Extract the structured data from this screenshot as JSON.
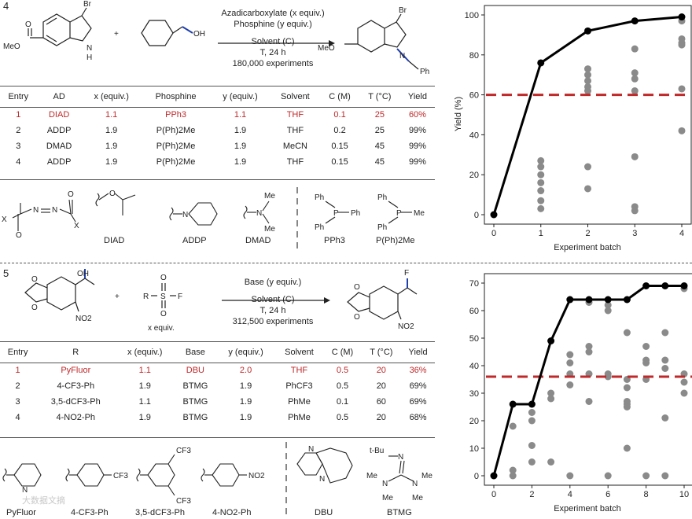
{
  "panel4": {
    "number": "4",
    "atoms": {
      "br": "Br",
      "meo": "MeO",
      "o": "O",
      "nh_n": "N",
      "nh_h": "H",
      "oh": "OH",
      "n": "N",
      "ph": "Ph",
      "plus": "+"
    },
    "conditions": {
      "line1": "Azadicarboxylate (x equiv.)",
      "line2": "Phosphine (y equiv.)",
      "line3": "Solvent (C)",
      "line4": "T, 24 h",
      "line5": "180,000 experiments"
    },
    "table": {
      "headers": [
        "Entry",
        "AD",
        "x (equiv.)",
        "Phosphine",
        "y (equiv.)",
        "Solvent",
        "C (M)",
        "T (°C)",
        "Yield"
      ],
      "rows": [
        [
          "1",
          "DIAD",
          "1.1",
          "PPh3",
          "1.1",
          "THF",
          "0.1",
          "25",
          "60%"
        ],
        [
          "2",
          "ADDP",
          "1.9",
          "P(Ph)2Me",
          "1.9",
          "THF",
          "0.2",
          "25",
          "99%"
        ],
        [
          "3",
          "DMAD",
          "1.9",
          "P(Ph)2Me",
          "1.9",
          "MeCN",
          "0.15",
          "45",
          "99%"
        ],
        [
          "4",
          "ADDP",
          "1.9",
          "P(Ph)2Me",
          "1.9",
          "THF",
          "0.15",
          "45",
          "99%"
        ]
      ]
    },
    "structures": {
      "diad": "DIAD",
      "addp": "ADDP",
      "dmad": "DMAD",
      "pph3": "PPh3",
      "pph2me": "P(Ph)2Me"
    },
    "struct_atoms": {
      "x": "X",
      "o": "O",
      "n": "N",
      "ph": "Ph",
      "p": "P",
      "me": "Me"
    }
  },
  "chart4": {
    "type": "line",
    "xlabel": "Experiment batch",
    "ylabel": "Yield (%)",
    "xlim": [
      0,
      4
    ],
    "ylim": [
      0,
      100
    ],
    "xticks": [
      0,
      1,
      2,
      3,
      4
    ],
    "yticks": [
      0,
      20,
      40,
      60,
      80,
      100
    ],
    "line_x": [
      0,
      1,
      2,
      3,
      4
    ],
    "line_y": [
      0,
      76,
      92,
      97,
      99
    ],
    "ref_y": 60,
    "scatter": [
      [
        1,
        27
      ],
      [
        1,
        24
      ],
      [
        1,
        20
      ],
      [
        1,
        16
      ],
      [
        1,
        12
      ],
      [
        1,
        7
      ],
      [
        1,
        3
      ],
      [
        2,
        73
      ],
      [
        2,
        70
      ],
      [
        2,
        67
      ],
      [
        2,
        64
      ],
      [
        2,
        62
      ],
      [
        2,
        24
      ],
      [
        2,
        13
      ],
      [
        3,
        83
      ],
      [
        3,
        71
      ],
      [
        3,
        68
      ],
      [
        3,
        62
      ],
      [
        3,
        29
      ],
      [
        3,
        4
      ],
      [
        3,
        2
      ],
      [
        4,
        97
      ],
      [
        4,
        88
      ],
      [
        4,
        86
      ],
      [
        4,
        85
      ],
      [
        4,
        63
      ],
      [
        4,
        42
      ]
    ]
  },
  "panel5": {
    "number": "5",
    "atoms": {
      "oh": "OH",
      "o1": "O",
      "o2": "O",
      "o3": "O",
      "o4": "O",
      "no2": "NO2",
      "r": "R",
      "s": "S",
      "f": "F",
      "so_o1": "O",
      "so_o2": "O",
      "xequiv": "x equiv.",
      "plus": "+",
      "f2": "F",
      "no2b": "NO2"
    },
    "conditions": {
      "line1": "Base (y equiv.)",
      "line2": "Solvent (C)",
      "line3": "T, 24 h",
      "line4": "312,500 experiments"
    },
    "table": {
      "headers": [
        "Entry",
        "R",
        "x (equiv.)",
        "Base",
        "y (equiv.)",
        "Solvent",
        "C (M)",
        "T (°C)",
        "Yield"
      ],
      "rows": [
        [
          "1",
          "PyFluor",
          "1.1",
          "DBU",
          "2.0",
          "THF",
          "0.5",
          "20",
          "36%"
        ],
        [
          "2",
          "4-CF3-Ph",
          "1.9",
          "BTMG",
          "1.9",
          "PhCF3",
          "0.5",
          "20",
          "69%"
        ],
        [
          "3",
          "3,5-dCF3-Ph",
          "1.1",
          "BTMG",
          "1.9",
          "PhMe",
          "0.1",
          "60",
          "69%"
        ],
        [
          "4",
          "4-NO2-Ph",
          "1.9",
          "BTMG",
          "1.9",
          "PhMe",
          "0.5",
          "20",
          "68%"
        ]
      ]
    },
    "structures": {
      "pyfluor": "PyFluor",
      "cf3ph": "4-CF3-Ph",
      "dcf3ph": "3,5-dCF3-Ph",
      "no2ph": "4-NO2-Ph",
      "dbu": "DBU",
      "btmg": "BTMG"
    },
    "struct_atoms": {
      "n": "N",
      "cf3": "CF3",
      "no2": "NO2",
      "tbu": "t-Bu",
      "me": "Me"
    }
  },
  "chart5": {
    "type": "line",
    "xlabel": "Experiment batch",
    "ylabel": "",
    "xlim": [
      0,
      10
    ],
    "ylim": [
      0,
      70
    ],
    "xticks": [
      0,
      2,
      4,
      6,
      8,
      10
    ],
    "yticks": [
      0,
      10,
      20,
      30,
      40,
      50,
      60,
      70
    ],
    "line_x": [
      0,
      1,
      2,
      3,
      4,
      5,
      6,
      7,
      8,
      9,
      10
    ],
    "line_y": [
      0,
      26,
      26,
      49,
      64,
      64,
      64,
      64,
      69,
      69,
      69
    ],
    "ref_y": 36,
    "scatter": [
      [
        1,
        18
      ],
      [
        1,
        2
      ],
      [
        1,
        0
      ],
      [
        2,
        23
      ],
      [
        2,
        20
      ],
      [
        2,
        11
      ],
      [
        2,
        5
      ],
      [
        3,
        30
      ],
      [
        3,
        28
      ],
      [
        3,
        5
      ],
      [
        4,
        44
      ],
      [
        4,
        41
      ],
      [
        4,
        37
      ],
      [
        4,
        33
      ],
      [
        4,
        0
      ],
      [
        5,
        63
      ],
      [
        5,
        47
      ],
      [
        5,
        45
      ],
      [
        5,
        37
      ],
      [
        5,
        27
      ],
      [
        6,
        62
      ],
      [
        6,
        60
      ],
      [
        6,
        37
      ],
      [
        6,
        36
      ],
      [
        6,
        0
      ],
      [
        7,
        52
      ],
      [
        7,
        35
      ],
      [
        7,
        32
      ],
      [
        7,
        27
      ],
      [
        7,
        26
      ],
      [
        7,
        25
      ],
      [
        7,
        10
      ],
      [
        8,
        47
      ],
      [
        8,
        42
      ],
      [
        8,
        41
      ],
      [
        8,
        35
      ],
      [
        8,
        0
      ],
      [
        9,
        52
      ],
      [
        9,
        42
      ],
      [
        9,
        39
      ],
      [
        9,
        21
      ],
      [
        9,
        0
      ],
      [
        10,
        68
      ],
      [
        10,
        37
      ],
      [
        10,
        34
      ],
      [
        10,
        30
      ]
    ]
  },
  "colors": {
    "red": "#c0282a",
    "dot": "#8a8a8a",
    "line": "#000000",
    "bond_blue": "#1f3fae",
    "grid": "#555555"
  },
  "watermark": "大数据文摘"
}
